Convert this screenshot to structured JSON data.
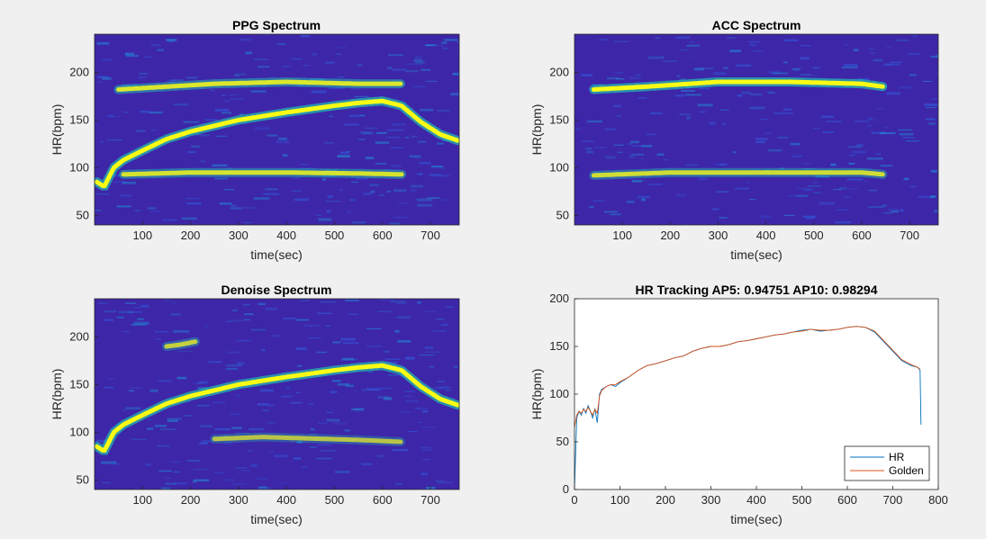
{
  "window": {
    "background": "#f0f0f0"
  },
  "colors": {
    "spectrum_low": "#3e26a8",
    "spectrum_mid": "#22bfb2",
    "spectrum_high": "#f9fb15",
    "hr_line": "#0072bd",
    "golden_line": "#d95319"
  },
  "chart_data": [
    {
      "type": "heatmap",
      "title": "PPG Spectrum",
      "xlabel": "time(sec)",
      "ylabel": "HR(bpm)",
      "xlim": [
        0,
        760
      ],
      "ylim": [
        40,
        240
      ],
      "xticks": [
        100,
        200,
        300,
        400,
        500,
        600,
        700
      ],
      "yticks": [
        50,
        100,
        150,
        200
      ],
      "ridges": [
        {
          "name": "hr",
          "intensity": 1.0,
          "width": 5,
          "points": [
            [
              5,
              85
            ],
            [
              20,
              80
            ],
            [
              40,
              100
            ],
            [
              60,
              108
            ],
            [
              100,
              118
            ],
            [
              150,
              130
            ],
            [
              200,
              138
            ],
            [
              300,
              150
            ],
            [
              400,
              158
            ],
            [
              500,
              165
            ],
            [
              550,
              168
            ],
            [
              600,
              170
            ],
            [
              640,
              165
            ],
            [
              680,
              148
            ],
            [
              720,
              135
            ],
            [
              760,
              128
            ]
          ]
        },
        {
          "name": "motion-1",
          "intensity": 0.75,
          "width": 5,
          "points": [
            [
              50,
              182
            ],
            [
              150,
              185
            ],
            [
              250,
              188
            ],
            [
              400,
              190
            ],
            [
              550,
              188
            ],
            [
              640,
              188
            ]
          ]
        },
        {
          "name": "motion-2",
          "intensity": 0.7,
          "width": 5,
          "points": [
            [
              60,
              93
            ],
            [
              200,
              95
            ],
            [
              400,
              95
            ],
            [
              550,
              94
            ],
            [
              640,
              93
            ]
          ]
        }
      ]
    },
    {
      "type": "heatmap",
      "title": "ACC Spectrum",
      "xlabel": "time(sec)",
      "ylabel": "HR(bpm)",
      "xlim": [
        0,
        760
      ],
      "ylim": [
        40,
        240
      ],
      "xticks": [
        100,
        200,
        300,
        400,
        500,
        600,
        700
      ],
      "yticks": [
        50,
        100,
        150,
        200
      ],
      "ridges": [
        {
          "name": "motion-1",
          "intensity": 1.0,
          "width": 5,
          "points": [
            [
              40,
              182
            ],
            [
              150,
              185
            ],
            [
              300,
              190
            ],
            [
              450,
              190
            ],
            [
              600,
              188
            ],
            [
              645,
              185
            ]
          ]
        },
        {
          "name": "motion-2",
          "intensity": 0.65,
          "width": 5,
          "points": [
            [
              40,
              92
            ],
            [
              200,
              95
            ],
            [
              400,
              95
            ],
            [
              600,
              95
            ],
            [
              645,
              93
            ]
          ]
        }
      ]
    },
    {
      "type": "heatmap",
      "title": "Denoise Spectrum",
      "xlabel": "time(sec)",
      "ylabel": "HR(bpm)",
      "xlim": [
        0,
        760
      ],
      "ylim": [
        40,
        240
      ],
      "xticks": [
        100,
        200,
        300,
        400,
        500,
        600,
        700
      ],
      "yticks": [
        50,
        100,
        150,
        200
      ],
      "ridges": [
        {
          "name": "hr",
          "intensity": 1.0,
          "width": 5,
          "points": [
            [
              5,
              85
            ],
            [
              20,
              80
            ],
            [
              40,
              100
            ],
            [
              60,
              108
            ],
            [
              100,
              118
            ],
            [
              150,
              130
            ],
            [
              200,
              138
            ],
            [
              300,
              150
            ],
            [
              400,
              158
            ],
            [
              500,
              165
            ],
            [
              550,
              168
            ],
            [
              600,
              170
            ],
            [
              640,
              165
            ],
            [
              680,
              148
            ],
            [
              720,
              135
            ],
            [
              760,
              128
            ]
          ]
        },
        {
          "name": "residual-1",
          "intensity": 0.55,
          "width": 5,
          "points": [
            [
              150,
              190
            ],
            [
              180,
              192
            ],
            [
              210,
              195
            ]
          ]
        },
        {
          "name": "residual-2",
          "intensity": 0.45,
          "width": 5,
          "points": [
            [
              250,
              93
            ],
            [
              350,
              95
            ],
            [
              550,
              92
            ],
            [
              640,
              90
            ]
          ]
        }
      ]
    },
    {
      "type": "line",
      "title": "HR Tracking AP5: 0.94751 AP10: 0.98294",
      "xlabel": "time(sec)",
      "ylabel": "HR(bpm)",
      "xlim": [
        0,
        800
      ],
      "ylim": [
        0,
        200
      ],
      "xticks": [
        0,
        100,
        200,
        300,
        400,
        500,
        600,
        700,
        800
      ],
      "yticks": [
        0,
        50,
        100,
        150,
        200
      ],
      "legend": "bottom-right",
      "series": [
        {
          "name": "HR",
          "x": [
            0,
            5,
            10,
            15,
            20,
            25,
            30,
            35,
            40,
            45,
            50,
            55,
            60,
            70,
            80,
            90,
            100,
            120,
            140,
            160,
            180,
            200,
            220,
            240,
            260,
            280,
            300,
            320,
            340,
            360,
            380,
            400,
            420,
            440,
            460,
            480,
            500,
            520,
            540,
            560,
            580,
            600,
            620,
            640,
            660,
            680,
            700,
            720,
            740,
            755,
            760,
            762
          ],
          "y": [
            0,
            75,
            82,
            78,
            85,
            80,
            88,
            82,
            75,
            85,
            70,
            100,
            105,
            108,
            110,
            108,
            112,
            118,
            125,
            130,
            132,
            135,
            138,
            140,
            145,
            148,
            150,
            150,
            152,
            155,
            156,
            158,
            160,
            162,
            163,
            165,
            167,
            168,
            166,
            167,
            168,
            170,
            171,
            170,
            165,
            155,
            145,
            135,
            130,
            128,
            125,
            68
          ]
        },
        {
          "name": "Golden",
          "x": [
            0,
            5,
            10,
            15,
            20,
            25,
            30,
            35,
            40,
            45,
            50,
            55,
            60,
            70,
            80,
            90,
            100,
            120,
            140,
            160,
            180,
            200,
            220,
            240,
            260,
            280,
            300,
            320,
            340,
            360,
            380,
            400,
            420,
            440,
            460,
            480,
            500,
            520,
            540,
            560,
            580,
            600,
            620,
            640,
            660,
            680,
            700,
            720,
            740,
            755,
            760
          ],
          "y": [
            65,
            78,
            82,
            80,
            84,
            82,
            86,
            82,
            78,
            84,
            80,
            98,
            104,
            108,
            110,
            110,
            113,
            118,
            125,
            130,
            132,
            135,
            138,
            140,
            145,
            148,
            150,
            150,
            152,
            155,
            156,
            158,
            160,
            162,
            163,
            165,
            166,
            168,
            167,
            167,
            168,
            170,
            171,
            170,
            166,
            156,
            146,
            136,
            131,
            128,
            126
          ]
        }
      ]
    }
  ]
}
